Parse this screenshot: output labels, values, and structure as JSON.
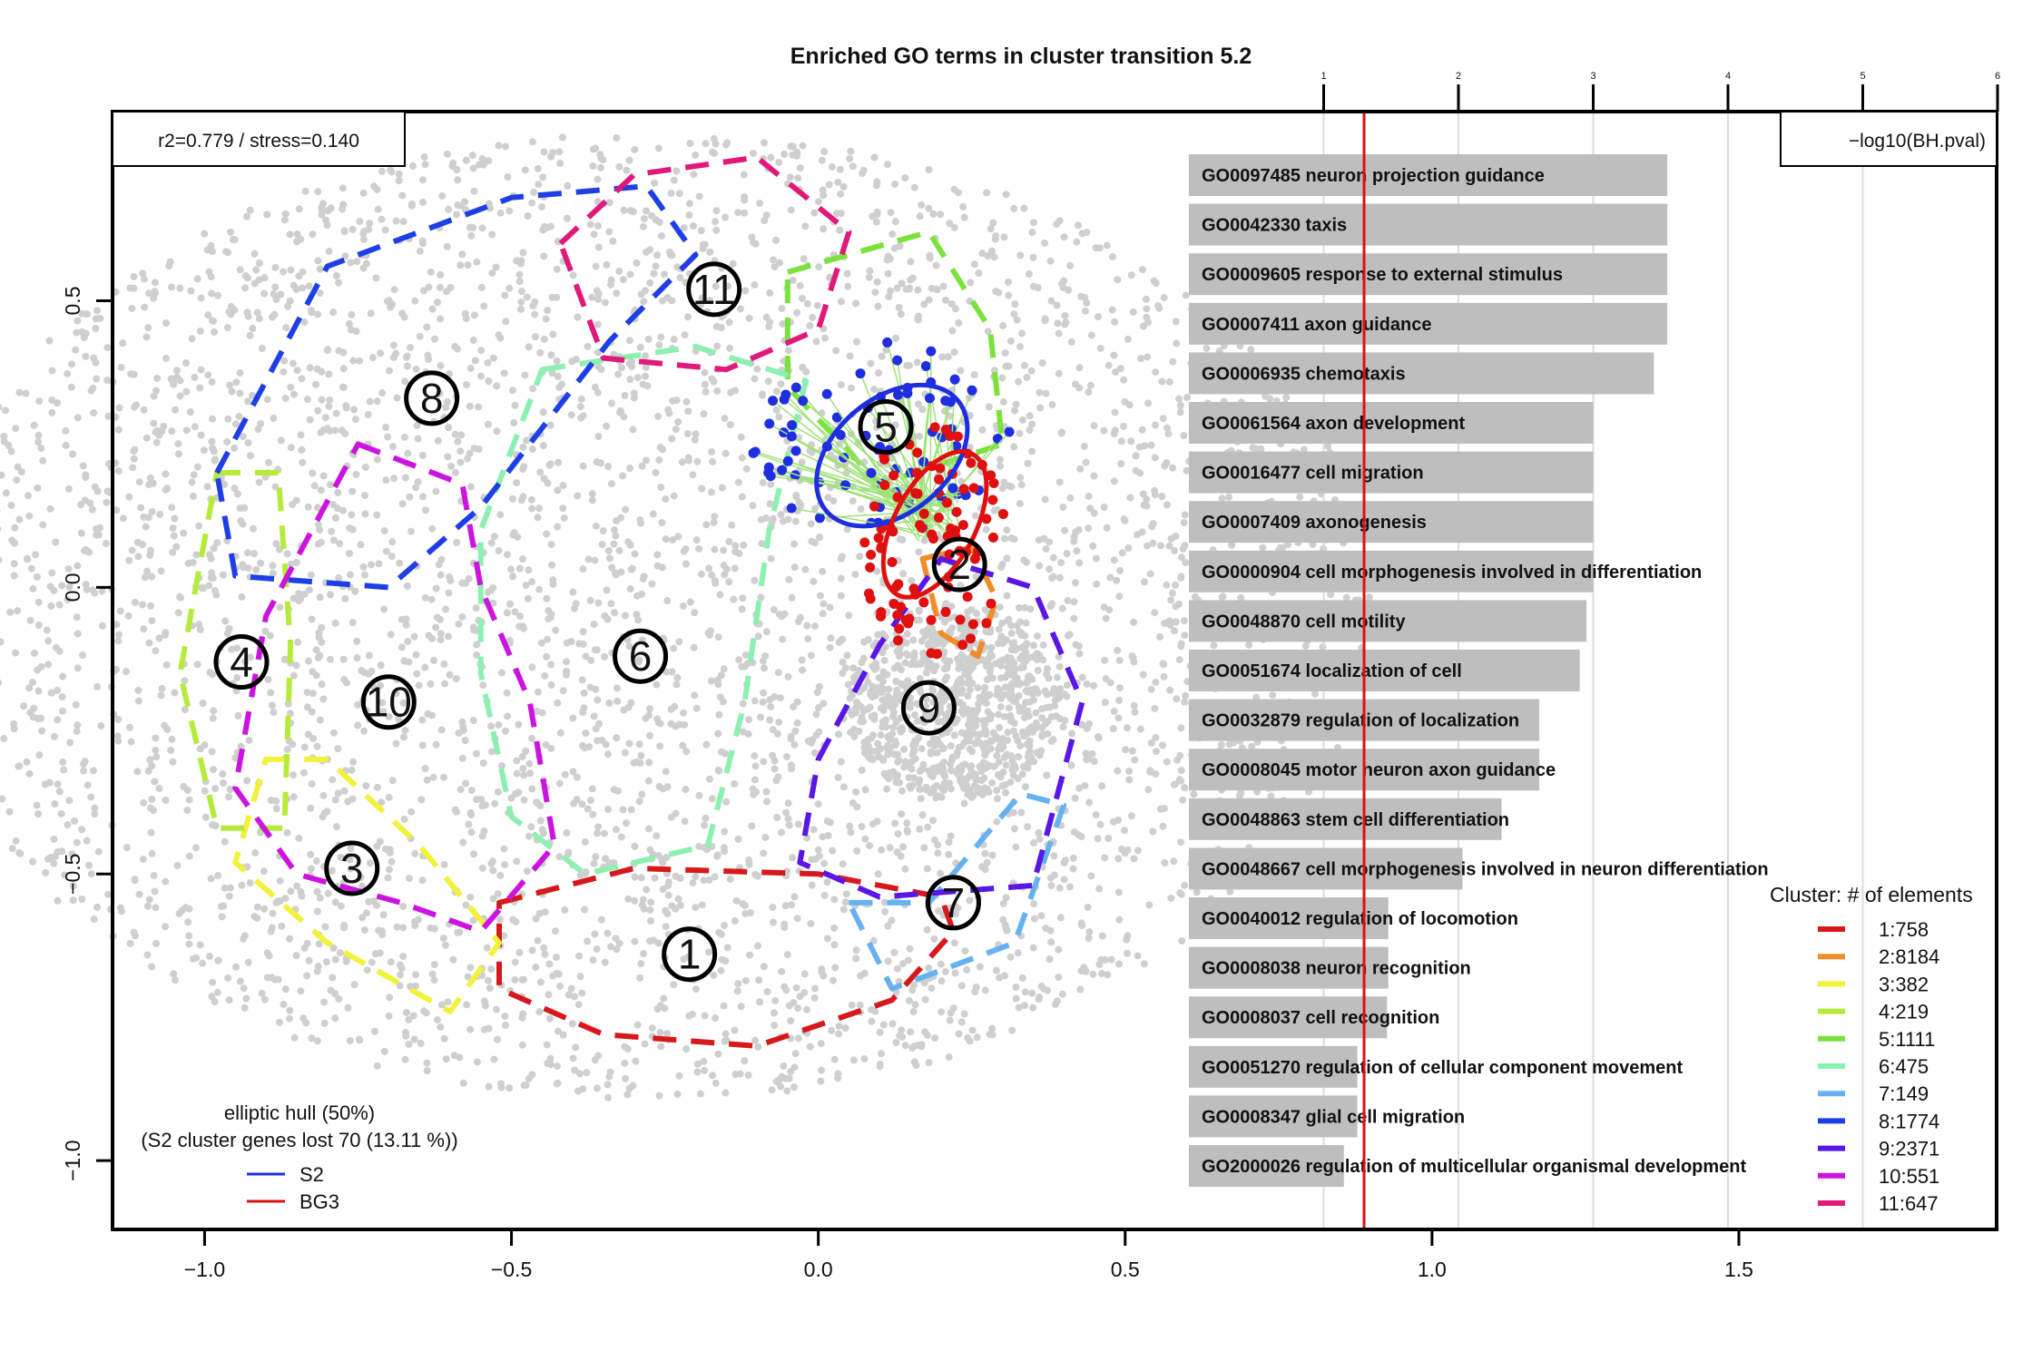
{
  "chart_data": {
    "type": "scatter",
    "title": "Enriched GO terms in cluster transition 5.2",
    "fit_stats": "r2=0.779 / stress=0.140",
    "scatter": {
      "xlim": [
        -1.15,
        1.92
      ],
      "ylim": [
        -1.12,
        0.83
      ],
      "x_ticks": [
        -1.0,
        -0.5,
        0.0,
        0.5,
        1.0,
        1.5
      ],
      "x_tick_labels": [
        "−1.0",
        "−0.5",
        "0.0",
        "0.5",
        "1.0",
        "1.5"
      ],
      "y_ticks": [
        0.5,
        0.0,
        -0.5,
        -1.0
      ],
      "y_tick_labels": [
        "0.5",
        "0.0",
        "−0.5",
        "−1.0"
      ],
      "background_point_color": "#cfcfcf",
      "cluster_labels": [
        {
          "label": "1",
          "x": -0.21,
          "y": -0.64
        },
        {
          "label": "2",
          "x": 0.23,
          "y": 0.04
        },
        {
          "label": "3",
          "x": -0.76,
          "y": -0.49
        },
        {
          "label": "4",
          "x": -0.94,
          "y": -0.13
        },
        {
          "label": "5",
          "x": 0.11,
          "y": 0.28
        },
        {
          "label": "6",
          "x": -0.29,
          "y": -0.12
        },
        {
          "label": "7",
          "x": 0.22,
          "y": -0.55
        },
        {
          "label": "8",
          "x": -0.63,
          "y": 0.33
        },
        {
          "label": "9",
          "x": 0.18,
          "y": -0.21
        },
        {
          "label": "10",
          "x": -0.7,
          "y": -0.2
        },
        {
          "label": "11",
          "x": -0.17,
          "y": 0.52
        }
      ],
      "ellipses": [
        {
          "name": "S2",
          "color": "#1f2fe0",
          "cx": 0.12,
          "cy": 0.23,
          "rx": 0.14,
          "ry": 0.1,
          "angle": -40
        },
        {
          "name": "BG3",
          "color": "#e01010",
          "cx": 0.19,
          "cy": 0.11,
          "rx": 0.13,
          "ry": 0.07,
          "angle": -62
        }
      ],
      "hull_legend": {
        "title": "elliptic hull (50%)",
        "note": "(S2 cluster genes lost 70 (13.11 %))",
        "entries": [
          {
            "name": "S2",
            "color": "#1f2fe0"
          },
          {
            "name": "BG3",
            "color": "#e01010"
          }
        ]
      },
      "cluster_legend": {
        "title": "Cluster: # of elements",
        "entries": [
          {
            "name": "1:758",
            "color": "#d7191c"
          },
          {
            "name": "2:8184",
            "color": "#f08c2a"
          },
          {
            "name": "3:382",
            "color": "#f2f23a"
          },
          {
            "name": "4:219",
            "color": "#b5ec3c"
          },
          {
            "name": "5:1111",
            "color": "#7be23c"
          },
          {
            "name": "6:475",
            "color": "#8cf0b0"
          },
          {
            "name": "7:149",
            "color": "#66b2f0"
          },
          {
            "name": "8:1774",
            "color": "#1f3fe6"
          },
          {
            "name": "9:2371",
            "color": "#5a16e6"
          },
          {
            "name": "10:551",
            "color": "#cc14e0"
          },
          {
            "name": "11:647",
            "color": "#e0197a"
          }
        ]
      }
    },
    "bars": {
      "axis_label": "−log10(BH.pval)",
      "xlim": [
        0,
        6
      ],
      "ticks": [
        1,
        2,
        3,
        4,
        5,
        6
      ],
      "tick_labels": [
        "1",
        "2",
        "3",
        "4",
        "5",
        "6"
      ],
      "threshold": 1.3,
      "threshold_color": "#e01010",
      "bar_color": "#bebebe",
      "categories": [
        "GO0097485 neuron projection guidance",
        "GO0042330 taxis",
        "GO0009605 response to external stimulus",
        "GO0007411 axon guidance",
        "GO0006935 chemotaxis",
        "GO0061564 axon development",
        "GO0016477 cell migration",
        "GO0007409 axonogenesis",
        "GO0000904 cell morphogenesis involved in differentiation",
        "GO0048870 cell motility",
        "GO0051674 localization of cell",
        "GO0032879 regulation of localization",
        "GO0008045 motor neuron axon guidance",
        "GO0048863 stem cell differentiation",
        "GO0048667 cell morphogenesis involved in neuron differentiation",
        "GO0040012 regulation of locomotion",
        "GO0008038 neuron recognition",
        "GO0008037 cell recognition",
        "GO0051270 regulation of cellular component movement",
        "GO0008347 glial cell migration",
        "GO2000026 regulation of multicellular organismal development"
      ],
      "values": [
        3.55,
        3.55,
        3.55,
        3.55,
        3.45,
        3.0,
        3.0,
        3.0,
        3.0,
        2.95,
        2.9,
        2.6,
        2.6,
        2.32,
        2.03,
        1.48,
        1.48,
        1.47,
        1.25,
        1.25,
        1.15
      ]
    }
  }
}
